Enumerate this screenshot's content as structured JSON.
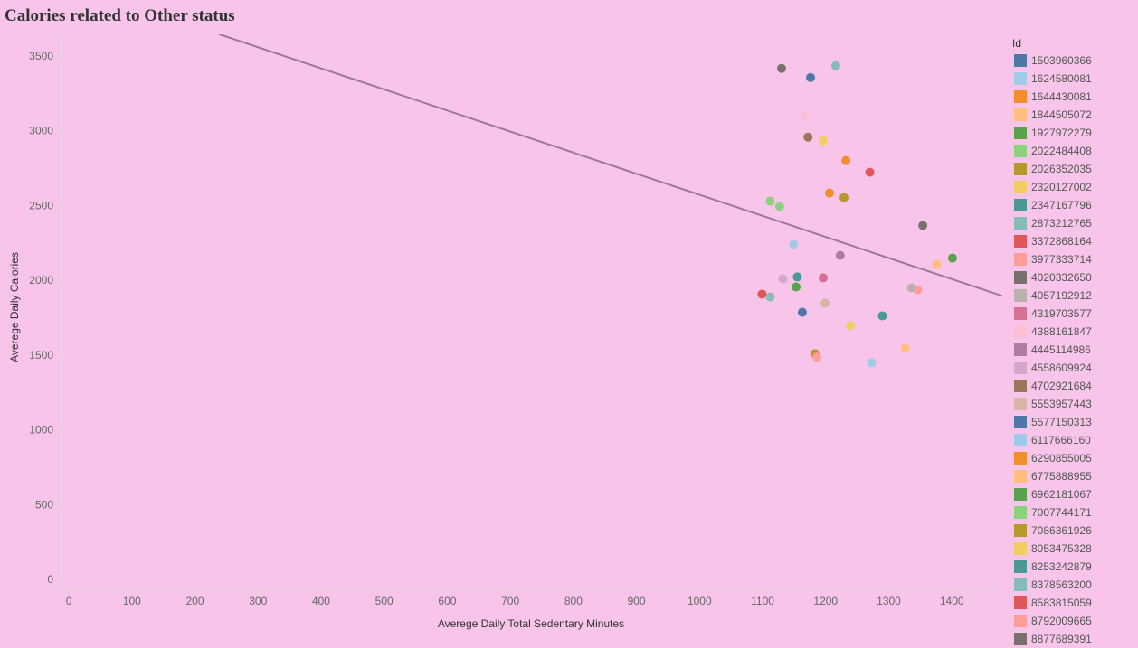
{
  "chart_data": {
    "type": "scatter",
    "title": "Calories related to Other status",
    "x_label": "Averege Daily Total Sedentary Minutes",
    "y_label": "Averege Daily Calories",
    "legend_title": "Id",
    "xlim": [
      -13,
      1480
    ],
    "ylim": [
      -48,
      3650
    ],
    "xticks": [
      0,
      100,
      200,
      300,
      400,
      500,
      600,
      700,
      800,
      900,
      1000,
      1100,
      1200,
      1300,
      1400
    ],
    "yticks": [
      0,
      500,
      1000,
      1500,
      2000,
      2500,
      3000,
      3500
    ],
    "trend_line": {
      "color": "#9a7a94",
      "x": [
        238,
        1480
      ],
      "values": [
        3651,
        1901
      ]
    },
    "series": [
      {
        "name": "1503960366",
        "color": "#4e79a7",
        "x": [
          1163
        ],
        "values": [
          1792
        ]
      },
      {
        "name": "1624580081",
        "color": "#a0cbe8",
        "x": [
          1149
        ],
        "values": [
          2245
        ]
      },
      {
        "name": "1644430081",
        "color": "#f28e2b",
        "x": [
          1206
        ],
        "values": [
          2589
        ]
      },
      {
        "name": "1844505072",
        "color": "#ffbe7d",
        "x": [
          1376
        ],
        "values": [
          2112
        ]
      },
      {
        "name": "1927972279",
        "color": "#59a14f",
        "x": [
          1153
        ],
        "values": [
          1961
        ]
      },
      {
        "name": "2022484408",
        "color": "#8cd17d",
        "x": [
          1112
        ],
        "values": [
          2535
        ]
      },
      {
        "name": "2026352035",
        "color": "#b6992d",
        "x": [
          1229
        ],
        "values": [
          2559
        ]
      },
      {
        "name": "2320127002",
        "color": "#f1ce63",
        "x": [
          1239
        ],
        "values": [
          1702
        ]
      },
      {
        "name": "2347167796",
        "color": "#499894",
        "x": [
          1155
        ],
        "values": [
          2028
        ]
      },
      {
        "name": "2873212765",
        "color": "#86bcb6",
        "x": [
          1216
        ],
        "values": [
          3440
        ]
      },
      {
        "name": "3372868164",
        "color": "#e15759",
        "x": [
          1270
        ],
        "values": [
          2728
        ]
      },
      {
        "name": "3977333714",
        "color": "#ff9d9a",
        "x": [
          1346
        ],
        "values": [
          1943
        ]
      },
      {
        "name": "4020332650",
        "color": "#79706e",
        "x": [
          1130
        ],
        "values": [
          3422
        ]
      },
      {
        "name": "4057192912",
        "color": "#bab0ac",
        "x": [
          1336
        ],
        "values": [
          1955
        ]
      },
      {
        "name": "4319703577",
        "color": "#d37295",
        "x": [
          1196
        ],
        "values": [
          2022
        ]
      },
      {
        "name": "4388161847",
        "color": "#fabfd2",
        "x": [
          1167
        ],
        "values": [
          3096
        ]
      },
      {
        "name": "4445114986",
        "color": "#b07aa1",
        "x": [
          1223
        ],
        "values": [
          2172
        ]
      },
      {
        "name": "4558609924",
        "color": "#d4a6c8",
        "x": [
          1132
        ],
        "values": [
          2016
        ]
      },
      {
        "name": "4702921684",
        "color": "#9d7660",
        "x": [
          1172
        ],
        "values": [
          2963
        ]
      },
      {
        "name": "5553957443",
        "color": "#d7b5a6",
        "x": [
          1199
        ],
        "values": [
          1853
        ]
      },
      {
        "name": "5577150313",
        "color": "#4e79a7",
        "x": [
          1176
        ],
        "values": [
          3361
        ]
      },
      {
        "name": "6117666160",
        "color": "#a0cbe8",
        "x": [
          1273
        ],
        "values": [
          1454
        ]
      },
      {
        "name": "6290855005",
        "color": "#f28e2b",
        "x": [
          1232
        ],
        "values": [
          2806
        ]
      },
      {
        "name": "6775888955",
        "color": "#ffbe7d",
        "x": [
          1326
        ],
        "values": [
          1551
        ]
      },
      {
        "name": "6962181067",
        "color": "#59a14f",
        "x": [
          1401
        ],
        "values": [
          2154
        ]
      },
      {
        "name": "7007744171",
        "color": "#8cd17d",
        "x": [
          1127
        ],
        "values": [
          2498
        ]
      },
      {
        "name": "7086361926",
        "color": "#b6992d",
        "x": [
          1183
        ],
        "values": [
          1515
        ]
      },
      {
        "name": "8053475328",
        "color": "#f1ce63",
        "x": [
          1196
        ],
        "values": [
          2939
        ]
      },
      {
        "name": "8253242879",
        "color": "#499894",
        "x": [
          1290
        ],
        "values": [
          1768
        ]
      },
      {
        "name": "8378563200",
        "color": "#86bcb6",
        "x": [
          1112
        ],
        "values": [
          1895
        ]
      },
      {
        "name": "8583815059",
        "color": "#e15759",
        "x": [
          1099
        ],
        "values": [
          1913
        ]
      },
      {
        "name": "8792009665",
        "color": "#ff9d9a",
        "x": [
          1186
        ],
        "values": [
          1491
        ]
      },
      {
        "name": "8877689391",
        "color": "#79706e",
        "x": [
          1354
        ],
        "values": [
          2372
        ]
      }
    ]
  }
}
